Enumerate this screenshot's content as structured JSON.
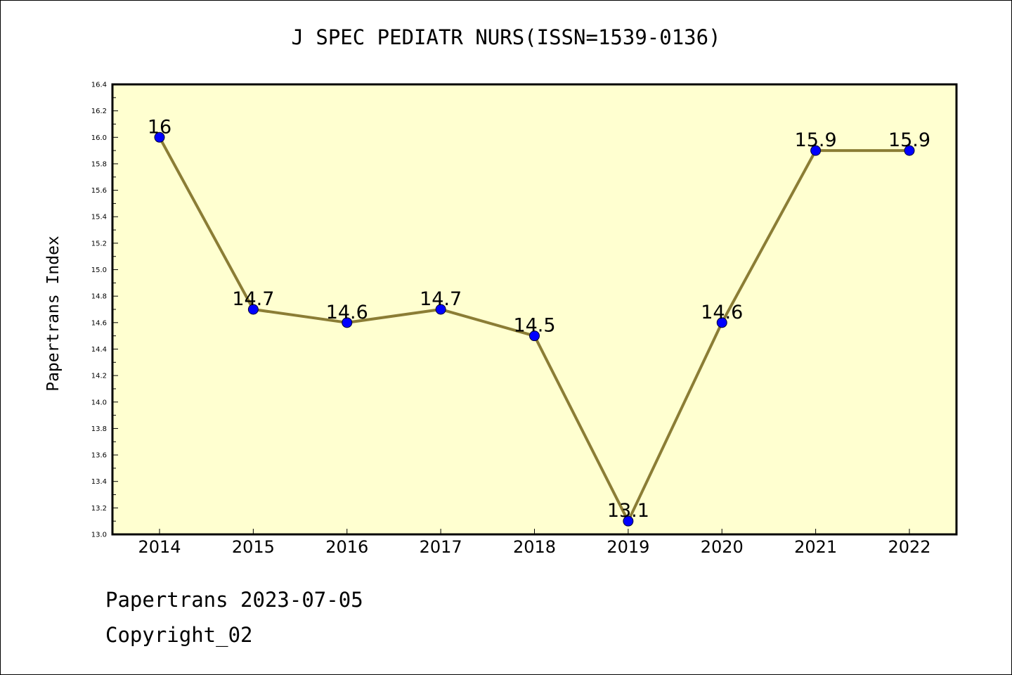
{
  "title": "J SPEC PEDIATR NURS(ISSN=1539-0136)",
  "footer": {
    "line1": "Papertrans 2023-07-05",
    "line2": "Copyright_02"
  },
  "colors": {
    "plot_background": "#ffffd0",
    "line": "#8b7d35",
    "marker": "#0000ff",
    "axis": "#000000"
  },
  "chart_data": {
    "type": "line",
    "title": "J SPEC PEDIATR NURS(ISSN=1539-0136)",
    "xlabel": "",
    "ylabel": "Papertrans Index",
    "categories": [
      "2014",
      "2015",
      "2016",
      "2017",
      "2018",
      "2019",
      "2020",
      "2021",
      "2022"
    ],
    "series": [
      {
        "values": [
          16,
          14.7,
          14.6,
          14.7,
          14.5,
          13.1,
          14.6,
          15.9,
          15.9
        ],
        "labels": [
          "16",
          "14.7",
          "14.6",
          "14.7",
          "14.5",
          "13.1",
          "14.6",
          "15.9",
          "15.9"
        ]
      }
    ],
    "ylim": [
      13.0,
      16.4
    ],
    "yticks": [
      "13.0",
      "13.2",
      "13.4",
      "13.6",
      "13.8",
      "14.0",
      "14.2",
      "14.4",
      "14.6",
      "14.8",
      "15.0",
      "15.2",
      "15.4",
      "15.6",
      "15.8",
      "16.0",
      "16.2",
      "16.4"
    ],
    "grid": false,
    "legend": "none"
  }
}
